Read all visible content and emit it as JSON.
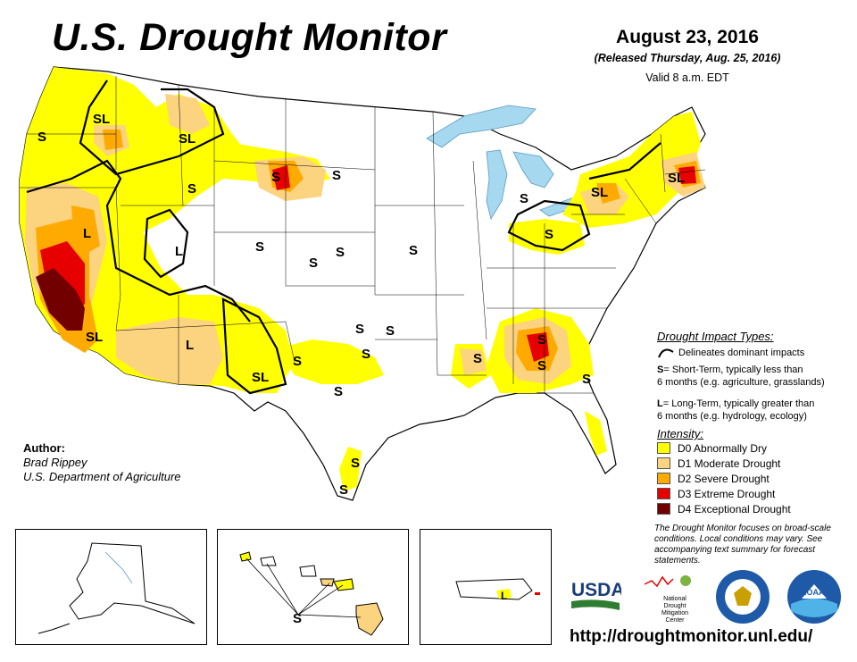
{
  "header": {
    "title": "U.S. Drought Monitor",
    "date": "August 23, 2016",
    "released": "(Released Thursday, Aug. 25, 2016)",
    "valid": "Valid 8 a.m. EDT"
  },
  "legend": {
    "impact_title": "Drought Impact Types:",
    "delineates": "Delineates dominant impacts",
    "short_term_key": "S",
    "short_term_text_1": "= Short-Term, typically less than",
    "short_term_text_2": "6 months (e.g. agriculture, grasslands)",
    "long_term_key": "L",
    "long_term_text_1": "= Long-Term, typically greater than",
    "long_term_text_2": "6 months (e.g. hydrology, ecology)",
    "intensity_title": "Intensity:",
    "categories": [
      {
        "label": "D0 Abnormally Dry",
        "color": "#ffff00"
      },
      {
        "label": "D1 Moderate Drought",
        "color": "#fcd37f"
      },
      {
        "label": "D2 Severe Drought",
        "color": "#ffaa00"
      },
      {
        "label": "D3 Extreme Drought",
        "color": "#e60000"
      },
      {
        "label": "D4 Exceptional Drought",
        "color": "#730000"
      }
    ]
  },
  "author": {
    "heading": "Author:",
    "name": "Brad Rippey",
    "org": "U.S. Department of Agriculture"
  },
  "note": "The Drought Monitor focuses on broad-scale conditions. Local conditions may vary. See accompanying text summary for forecast statements.",
  "logos": {
    "usda": "USDA",
    "ndmc_1": "National",
    "ndmc_2": "Drought",
    "ndmc_3": "Mitigation",
    "ndmc_4": "Center",
    "noaa": "NOAA"
  },
  "url": "http://droughtmonitor.unl.edu/",
  "map_labels": {
    "s": "S",
    "l": "L",
    "sl": "SL"
  },
  "colors": {
    "water": "#a6d8f0",
    "state_line": "#000000",
    "d0": "#ffff00",
    "d1": "#fcd37f",
    "d2": "#ffaa00",
    "d3": "#e60000",
    "d4": "#730000"
  }
}
